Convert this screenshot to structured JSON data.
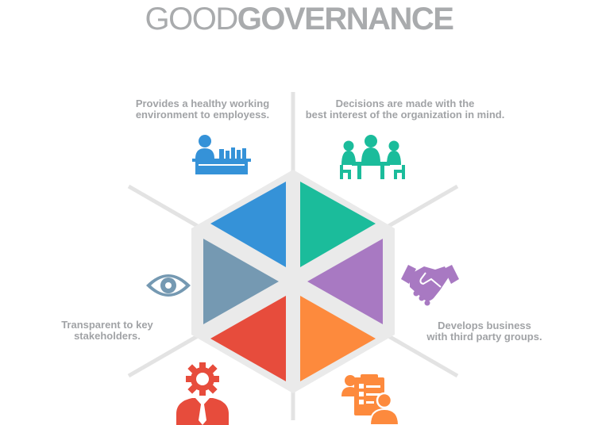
{
  "title": {
    "part1": "GOOD",
    "part2": "GOVERNANCE"
  },
  "captions": {
    "top_left": [
      "Provides a healthy working",
      "environment to employess."
    ],
    "top_right": [
      "Decisions are made with the",
      "best interest of the organization in mind."
    ],
    "right": [
      "Develops business",
      "with third party groups."
    ],
    "left": [
      "Transparent to key",
      "stakeholders."
    ]
  },
  "colors": {
    "top_left": "#3592d8",
    "top_right": "#1bbc9b",
    "right": "#a879c2",
    "bottom_right": "#fd8a3d",
    "bottom_left": "#e74c3c",
    "left": "#7599b2",
    "hexagon": "#eaeaea",
    "lines": "#e3e3e3",
    "text": "#a1a3a6"
  },
  "icons": [
    "employee-desk-icon",
    "meeting-icon",
    "handshake-icon",
    "checklist-person-icon",
    "gear-person-icon",
    "eye-icon"
  ]
}
